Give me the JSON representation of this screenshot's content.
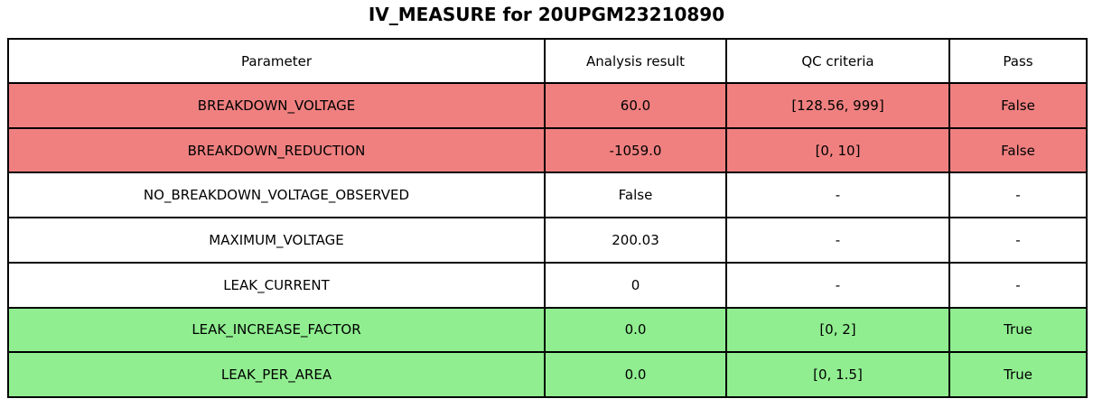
{
  "chart_data": {
    "type": "table",
    "title": "IV_MEASURE for 20UPGM23210890",
    "columns": [
      "Parameter",
      "Analysis result",
      "QC criteria",
      "Pass"
    ],
    "rows": [
      {
        "parameter": "BREAKDOWN_VOLTAGE",
        "result": "60.0",
        "criteria": "[128.56, 999]",
        "pass": "False",
        "status": "fail"
      },
      {
        "parameter": "BREAKDOWN_REDUCTION",
        "result": "-1059.0",
        "criteria": "[0, 10]",
        "pass": "False",
        "status": "fail"
      },
      {
        "parameter": "NO_BREAKDOWN_VOLTAGE_OBSERVED",
        "result": "False",
        "criteria": "-",
        "pass": "-",
        "status": "neutral"
      },
      {
        "parameter": "MAXIMUM_VOLTAGE",
        "result": "200.03",
        "criteria": "-",
        "pass": "-",
        "status": "neutral"
      },
      {
        "parameter": "LEAK_CURRENT",
        "result": "0",
        "criteria": "-",
        "pass": "-",
        "status": "neutral"
      },
      {
        "parameter": "LEAK_INCREASE_FACTOR",
        "result": "0.0",
        "criteria": "[0, 2]",
        "pass": "True",
        "status": "pass"
      },
      {
        "parameter": "LEAK_PER_AREA",
        "result": "0.0",
        "criteria": "[0, 1.5]",
        "pass": "True",
        "status": "pass"
      }
    ],
    "status_colors": {
      "fail": "#f08080",
      "pass": "#90ee90",
      "neutral": "#ffffff"
    },
    "layout": {
      "grid": "on",
      "border_color": "#000000",
      "text_align": "center"
    }
  }
}
